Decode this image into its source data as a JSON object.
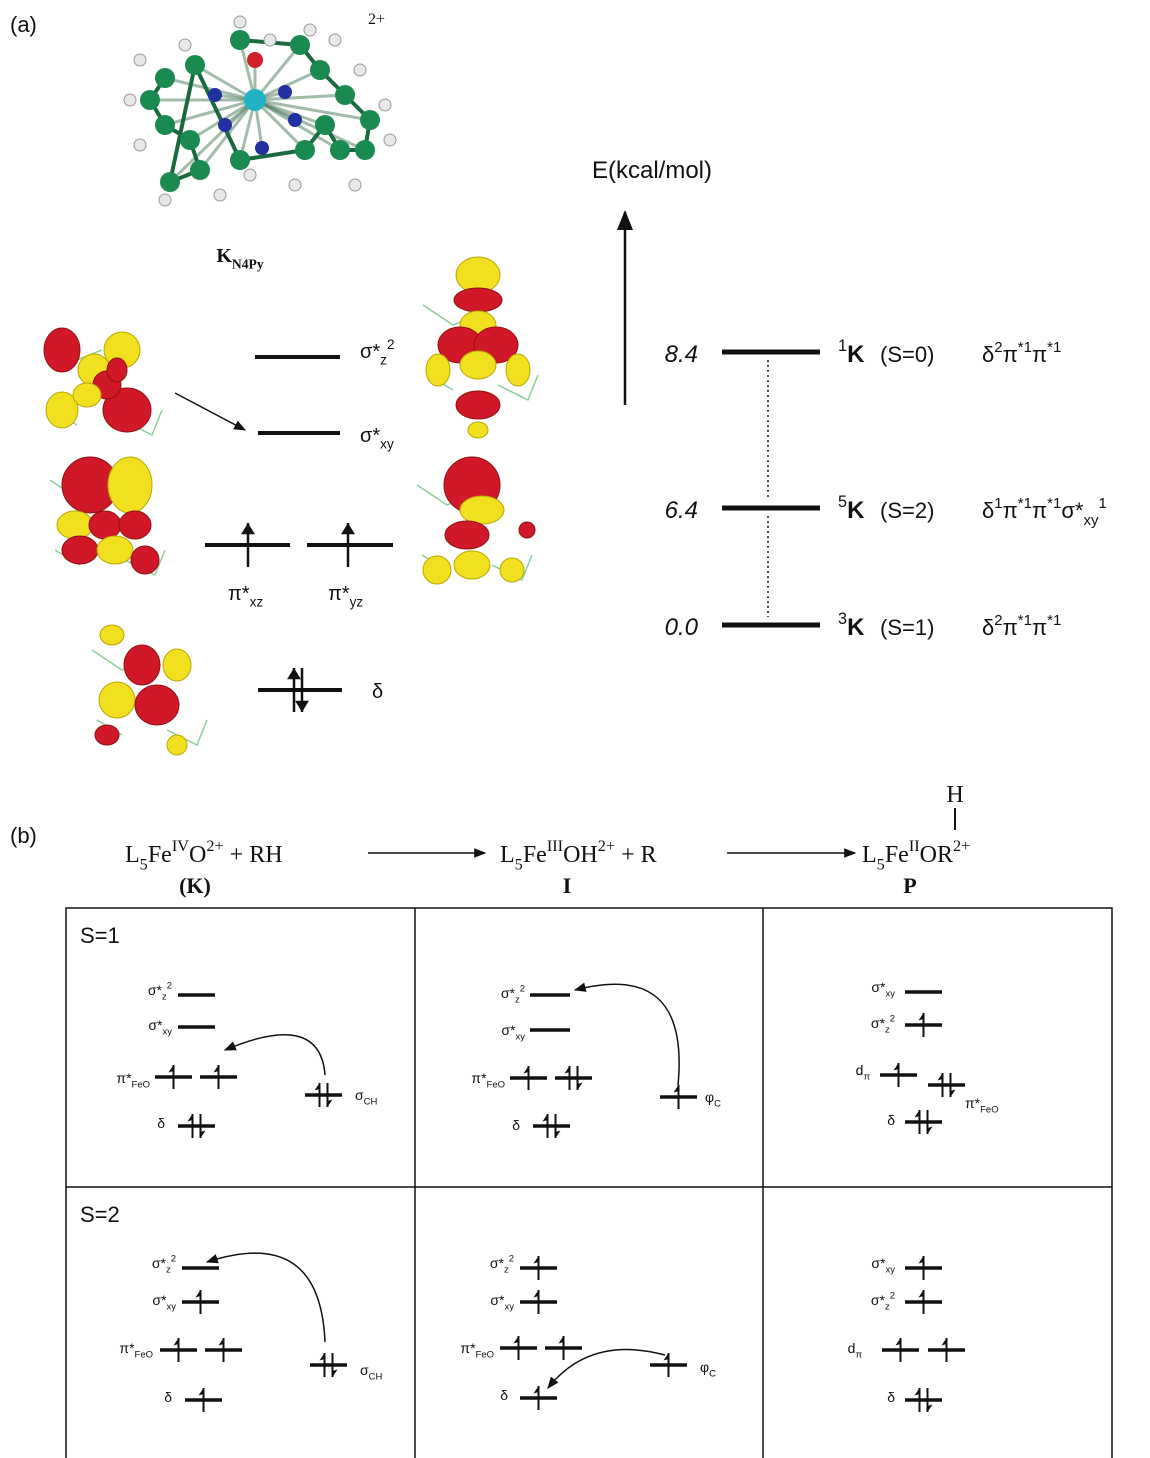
{
  "panel_a": {
    "label": "(a)",
    "charge": "2+",
    "molecule": {
      "base": "K",
      "sub": "N4Py"
    },
    "orbitals": [
      {
        "base": "σ*",
        "sub": "z",
        "sup": "2"
      },
      {
        "base": "σ*",
        "sub": "xy"
      },
      {
        "base": "π*",
        "sub": "xz"
      },
      {
        "base": "π*",
        "sub": "yz"
      },
      {
        "base": "δ"
      }
    ],
    "axis_label": "E(kcal/mol)",
    "states": [
      {
        "energy": "8.4",
        "multiplicity": "1",
        "name": "K",
        "spin": "(S=0)",
        "config": [
          {
            "base": "δ",
            "sup": "2"
          },
          {
            "base": "π",
            "sup": "*1"
          },
          {
            "base": "π",
            "sup": "*1"
          }
        ]
      },
      {
        "energy": "6.4",
        "multiplicity": "5",
        "name": "K",
        "spin": "(S=2)",
        "config": [
          {
            "base": "δ",
            "sup": "1"
          },
          {
            "base": "π",
            "sup": "*1"
          },
          {
            "base": "π",
            "sup": "*1"
          },
          {
            "base": "σ*",
            "sub": "xy",
            "sup": "1"
          }
        ]
      },
      {
        "energy": "0.0",
        "multiplicity": "3",
        "name": "K",
        "spin": "(S=1)",
        "config": [
          {
            "base": "δ",
            "sup": "2"
          },
          {
            "base": "π",
            "sup": "*1"
          },
          {
            "base": "π",
            "sup": "*1"
          }
        ]
      }
    ]
  },
  "panel_b": {
    "label": "(b)",
    "reaction": {
      "reactant": [
        "L",
        "5",
        "Fe",
        "IV",
        "O",
        "2+",
        " + RH"
      ],
      "reactant_label": "(K)",
      "intermediate": [
        "L",
        "5",
        "Fe",
        "III",
        "OH",
        "2+",
        " + R"
      ],
      "intermediate_label": "I",
      "product": [
        "L",
        "5",
        "Fe",
        "II",
        "OR",
        "2+"
      ],
      "product_h": "H",
      "product_label": "P"
    },
    "rows": [
      {
        "spin": "S=1",
        "cells": [
          {
            "levels": [
              {
                "base": "σ*",
                "sub": "z",
                "sup": "2"
              },
              {
                "base": "σ*",
                "sub": "xy"
              },
              {
                "base": "π*",
                "sub": "FeO"
              },
              {
                "base": "σ",
                "sub": "CH"
              },
              {
                "base": "δ"
              }
            ]
          },
          {
            "levels": [
              {
                "base": "σ*",
                "sub": "z",
                "sup": "2"
              },
              {
                "base": "σ*",
                "sub": "xy"
              },
              {
                "base": "π*",
                "sub": "FeO"
              },
              {
                "base": "φ",
                "sub": "C"
              },
              {
                "base": "δ"
              }
            ]
          },
          {
            "levels": [
              {
                "base": "σ*",
                "sub": "xy"
              },
              {
                "base": "σ*",
                "sub": "z",
                "sup": "2"
              },
              {
                "base": "d",
                "sub": "π"
              },
              {
                "base": "π*",
                "sub": "FeO"
              },
              {
                "base": "δ"
              }
            ]
          }
        ]
      },
      {
        "spin": "S=2",
        "cells": [
          {
            "levels": [
              {
                "base": "σ*",
                "sub": "z",
                "sup": "2"
              },
              {
                "base": "σ*",
                "sub": "xy"
              },
              {
                "base": "π*",
                "sub": "FeO"
              },
              {
                "base": "σ",
                "sub": "CH"
              },
              {
                "base": "δ"
              }
            ]
          },
          {
            "levels": [
              {
                "base": "σ*",
                "sub": "z",
                "sup": "2"
              },
              {
                "base": "σ*",
                "sub": "xy"
              },
              {
                "base": "π*",
                "sub": "FeO"
              },
              {
                "base": "φ",
                "sub": "C"
              },
              {
                "base": "δ"
              }
            ]
          },
          {
            "levels": [
              {
                "base": "σ*",
                "sub": "xy"
              },
              {
                "base": "σ*",
                "sub": "z",
                "sup": "2"
              },
              {
                "base": "d",
                "sub": "π"
              },
              {
                "base": "δ"
              }
            ]
          }
        ]
      }
    ]
  }
}
